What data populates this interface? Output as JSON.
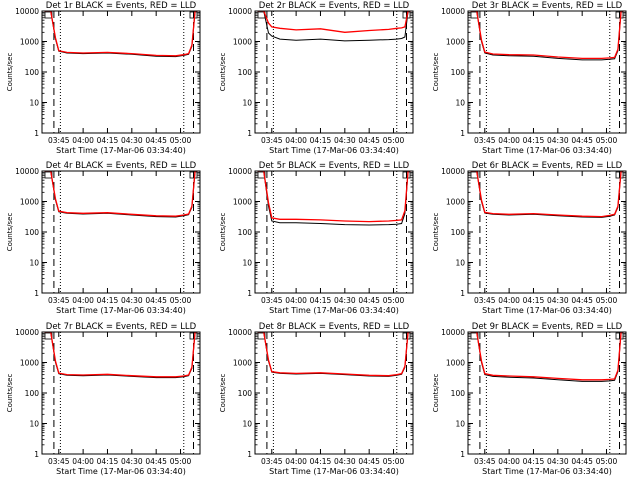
{
  "figure": {
    "colors": {
      "events": "#000000",
      "lld": "#ff0000",
      "background": "#ffffff"
    }
  },
  "chart_data": [
    {
      "type": "line",
      "title": "Det 1r BLACK = Events, RED = LLD",
      "xlabel": "Start Time (17-Mar-06 03:34:40)",
      "ylabel": "Counts/sec",
      "scale": "log-y",
      "ylim": [
        1,
        10000
      ],
      "xlim": [
        "03:34:40",
        "05:12:00"
      ],
      "x_ticks": [
        "03:45",
        "04:00",
        "04:15",
        "04:30",
        "04:45",
        "05:00"
      ],
      "y_ticks": [
        1,
        10,
        100,
        1000,
        10000
      ],
      "series": [
        {
          "name": "Events",
          "color": "#000000",
          "x": [
            "03:36:00",
            "03:40:00",
            "03:43:00",
            "03:45:00",
            "03:50:00",
            "04:00:00",
            "04:15:00",
            "04:30:00",
            "04:45:00",
            "04:57:00",
            "05:02:00",
            "05:05:00",
            "05:07:00",
            "05:09:00",
            "05:11:00"
          ],
          "values": [
            10000,
            10000,
            1200,
            480,
            420,
            400,
            420,
            380,
            330,
            320,
            350,
            380,
            700,
            10000,
            10000
          ]
        },
        {
          "name": "LLD",
          "color": "#ff0000",
          "x": [
            "03:36:00",
            "03:40:00",
            "03:43:00",
            "03:45:00",
            "03:50:00",
            "04:00:00",
            "04:15:00",
            "04:30:00",
            "04:45:00",
            "04:57:00",
            "05:02:00",
            "05:05:00",
            "05:07:00",
            "05:09:00",
            "05:11:00"
          ],
          "values": [
            10000,
            10000,
            1300,
            500,
            440,
            420,
            440,
            400,
            350,
            340,
            370,
            400,
            750,
            10000,
            10000
          ]
        }
      ]
    },
    {
      "type": "line",
      "title": "Det 2r BLACK = Events, RED = LLD",
      "xlabel": "Start Time (17-Mar-06 03:34:40)",
      "ylabel": "Counts/sec",
      "scale": "log-y",
      "ylim": [
        1,
        10000
      ],
      "xlim": [
        "03:34:40",
        "05:12:00"
      ],
      "x_ticks": [
        "03:45",
        "04:00",
        "04:15",
        "04:30",
        "04:45",
        "05:00"
      ],
      "y_ticks": [
        1,
        10,
        100,
        1000,
        10000
      ],
      "series": [
        {
          "name": "Events",
          "color": "#000000",
          "x": [
            "03:36:00",
            "03:40:00",
            "03:43:00",
            "03:45:00",
            "03:50:00",
            "04:00:00",
            "04:15:00",
            "04:30:00",
            "04:45:00",
            "04:57:00",
            "05:02:00",
            "05:05:00",
            "05:07:00",
            "05:09:00",
            "05:11:00"
          ],
          "values": [
            10000,
            10000,
            1900,
            1500,
            1200,
            1100,
            1200,
            1050,
            1100,
            1150,
            1200,
            1250,
            1400,
            10000,
            10000
          ]
        },
        {
          "name": "LLD",
          "color": "#ff0000",
          "x": [
            "03:36:00",
            "03:40:00",
            "03:43:00",
            "03:45:00",
            "03:50:00",
            "04:00:00",
            "04:15:00",
            "04:30:00",
            "04:45:00",
            "04:57:00",
            "05:02:00",
            "05:05:00",
            "05:07:00",
            "05:09:00",
            "05:11:00"
          ],
          "values": [
            10000,
            10000,
            4000,
            3000,
            2700,
            2400,
            2600,
            2000,
            2300,
            2500,
            2700,
            2800,
            3000,
            10000,
            10000
          ]
        }
      ]
    },
    {
      "type": "line",
      "title": "Det 3r BLACK = Events, RED = LLD",
      "xlabel": "Start Time (17-Mar-06 03:34:40)",
      "ylabel": "Counts/sec",
      "scale": "log-y",
      "ylim": [
        1,
        10000
      ],
      "xlim": [
        "03:34:40",
        "05:12:00"
      ],
      "x_ticks": [
        "03:45",
        "04:00",
        "04:15",
        "04:30",
        "04:45",
        "05:00"
      ],
      "y_ticks": [
        1,
        10,
        100,
        1000,
        10000
      ],
      "series": [
        {
          "name": "Events",
          "color": "#000000",
          "x": [
            "03:36:00",
            "03:40:00",
            "03:43:00",
            "03:45:00",
            "03:50:00",
            "04:00:00",
            "04:15:00",
            "04:30:00",
            "04:45:00",
            "04:57:00",
            "05:02:00",
            "05:05:00",
            "05:07:00",
            "05:09:00",
            "05:11:00"
          ],
          "values": [
            10000,
            10000,
            1000,
            420,
            360,
            340,
            330,
            280,
            250,
            250,
            260,
            270,
            500,
            10000,
            10000
          ]
        },
        {
          "name": "LLD",
          "color": "#ff0000",
          "x": [
            "03:36:00",
            "03:40:00",
            "03:43:00",
            "03:45:00",
            "03:50:00",
            "04:00:00",
            "04:15:00",
            "04:30:00",
            "04:45:00",
            "04:57:00",
            "05:02:00",
            "05:05:00",
            "05:07:00",
            "05:09:00",
            "05:11:00"
          ],
          "values": [
            10000,
            10000,
            1100,
            450,
            390,
            370,
            360,
            310,
            280,
            280,
            290,
            300,
            550,
            10000,
            10000
          ]
        }
      ]
    },
    {
      "type": "line",
      "title": "Det 4r BLACK = Events, RED = LLD",
      "xlabel": "Start Time (17-Mar-06 03:34:40)",
      "ylabel": "Counts/sec",
      "scale": "log-y",
      "ylim": [
        1,
        10000
      ],
      "xlim": [
        "03:34:40",
        "05:12:00"
      ],
      "x_ticks": [
        "03:45",
        "04:00",
        "04:15",
        "04:30",
        "04:45",
        "05:00"
      ],
      "y_ticks": [
        1,
        10,
        100,
        1000,
        10000
      ],
      "series": [
        {
          "name": "Events",
          "color": "#000000",
          "x": [
            "03:36:00",
            "03:40:00",
            "03:43:00",
            "03:45:00",
            "03:50:00",
            "04:00:00",
            "04:15:00",
            "04:30:00",
            "04:45:00",
            "04:57:00",
            "05:02:00",
            "05:05:00",
            "05:07:00",
            "05:09:00",
            "05:11:00"
          ],
          "values": [
            10000,
            10000,
            1100,
            460,
            410,
            390,
            410,
            360,
            320,
            310,
            340,
            370,
            650,
            10000,
            10000
          ]
        },
        {
          "name": "LLD",
          "color": "#ff0000",
          "x": [
            "03:36:00",
            "03:40:00",
            "03:43:00",
            "03:45:00",
            "03:50:00",
            "04:00:00",
            "04:15:00",
            "04:30:00",
            "04:45:00",
            "04:57:00",
            "05:02:00",
            "05:05:00",
            "05:07:00",
            "05:09:00",
            "05:11:00"
          ],
          "values": [
            10000,
            10000,
            1200,
            480,
            430,
            410,
            430,
            380,
            340,
            330,
            360,
            390,
            700,
            10000,
            10000
          ]
        }
      ]
    },
    {
      "type": "line",
      "title": "Det 5r BLACK = Events, RED = LLD",
      "xlabel": "Start Time (17-Mar-06 03:34:40)",
      "ylabel": "Counts/sec",
      "scale": "log-y",
      "ylim": [
        1,
        10000
      ],
      "xlim": [
        "03:34:40",
        "05:12:00"
      ],
      "x_ticks": [
        "03:45",
        "04:00",
        "04:15",
        "04:30",
        "04:45",
        "05:00"
      ],
      "y_ticks": [
        1,
        10,
        100,
        1000,
        10000
      ],
      "series": [
        {
          "name": "Events",
          "color": "#000000",
          "x": [
            "03:36:00",
            "03:40:00",
            "03:43:00",
            "03:45:00",
            "03:50:00",
            "04:00:00",
            "04:15:00",
            "04:30:00",
            "04:45:00",
            "04:57:00",
            "05:02:00",
            "05:05:00",
            "05:07:00",
            "05:09:00",
            "05:11:00"
          ],
          "values": [
            10000,
            10000,
            700,
            230,
            200,
            200,
            190,
            175,
            170,
            175,
            180,
            190,
            400,
            10000,
            10000
          ]
        },
        {
          "name": "LLD",
          "color": "#ff0000",
          "x": [
            "03:36:00",
            "03:40:00",
            "03:43:00",
            "03:45:00",
            "03:50:00",
            "04:00:00",
            "04:15:00",
            "04:30:00",
            "04:45:00",
            "04:57:00",
            "05:02:00",
            "05:05:00",
            "05:07:00",
            "05:09:00",
            "05:11:00"
          ],
          "values": [
            10000,
            10000,
            900,
            290,
            260,
            260,
            250,
            230,
            220,
            230,
            240,
            250,
            500,
            10000,
            10000
          ]
        }
      ]
    },
    {
      "type": "line",
      "title": "Det 6r BLACK = Events, RED = LLD",
      "xlabel": "Start Time (17-Mar-06 03:34:40)",
      "ylabel": "Counts/sec",
      "scale": "log-y",
      "ylim": [
        1,
        10000
      ],
      "xlim": [
        "03:34:40",
        "05:12:00"
      ],
      "x_ticks": [
        "03:45",
        "04:00",
        "04:15",
        "04:30",
        "04:45",
        "05:00"
      ],
      "y_ticks": [
        1,
        10,
        100,
        1000,
        10000
      ],
      "series": [
        {
          "name": "Events",
          "color": "#000000",
          "x": [
            "03:36:00",
            "03:40:00",
            "03:43:00",
            "03:45:00",
            "03:50:00",
            "04:00:00",
            "04:15:00",
            "04:30:00",
            "04:45:00",
            "04:57:00",
            "05:02:00",
            "05:05:00",
            "05:07:00",
            "05:09:00",
            "05:11:00"
          ],
          "values": [
            10000,
            10000,
            1000,
            420,
            380,
            360,
            380,
            340,
            310,
            300,
            330,
            360,
            650,
            10000,
            10000
          ]
        },
        {
          "name": "LLD",
          "color": "#ff0000",
          "x": [
            "03:36:00",
            "03:40:00",
            "03:43:00",
            "03:45:00",
            "03:50:00",
            "04:00:00",
            "04:15:00",
            "04:30:00",
            "04:45:00",
            "04:57:00",
            "05:02:00",
            "05:05:00",
            "05:07:00",
            "05:09:00",
            "05:11:00"
          ],
          "values": [
            10000,
            10000,
            1100,
            440,
            400,
            380,
            400,
            360,
            330,
            320,
            350,
            380,
            700,
            10000,
            10000
          ]
        }
      ]
    },
    {
      "type": "line",
      "title": "Det 7r BLACK = Events, RED = LLD",
      "xlabel": "Start Time (17-Mar-06 03:34:40)",
      "ylabel": "Counts/sec",
      "scale": "log-y",
      "ylim": [
        1,
        10000
      ],
      "xlim": [
        "03:34:40",
        "05:12:00"
      ],
      "x_ticks": [
        "03:45",
        "04:00",
        "04:15",
        "04:30",
        "04:45",
        "05:00"
      ],
      "y_ticks": [
        1,
        10,
        100,
        1000,
        10000
      ],
      "series": [
        {
          "name": "Events",
          "color": "#000000",
          "x": [
            "03:36:00",
            "03:40:00",
            "03:43:00",
            "03:45:00",
            "03:50:00",
            "04:00:00",
            "04:15:00",
            "04:30:00",
            "04:45:00",
            "04:57:00",
            "05:02:00",
            "05:05:00",
            "05:07:00",
            "05:09:00",
            "05:11:00"
          ],
          "values": [
            10000,
            10000,
            1000,
            430,
            380,
            370,
            390,
            350,
            320,
            320,
            340,
            370,
            650,
            10000,
            10000
          ]
        },
        {
          "name": "LLD",
          "color": "#ff0000",
          "x": [
            "03:36:00",
            "03:40:00",
            "03:43:00",
            "03:45:00",
            "03:50:00",
            "04:00:00",
            "04:15:00",
            "04:30:00",
            "04:45:00",
            "04:57:00",
            "05:02:00",
            "05:05:00",
            "05:07:00",
            "05:09:00",
            "05:11:00"
          ],
          "values": [
            10000,
            10000,
            1100,
            450,
            400,
            390,
            410,
            370,
            340,
            340,
            360,
            390,
            700,
            10000,
            10000
          ]
        }
      ]
    },
    {
      "type": "line",
      "title": "Det 8r BLACK = Events, RED = LLD",
      "xlabel": "Start Time (17-Mar-06 03:34:40)",
      "ylabel": "Counts/sec",
      "scale": "log-y",
      "ylim": [
        1,
        10000
      ],
      "xlim": [
        "03:34:40",
        "05:12:00"
      ],
      "x_ticks": [
        "03:45",
        "04:00",
        "04:15",
        "04:30",
        "04:45",
        "05:00"
      ],
      "y_ticks": [
        1,
        10,
        100,
        1000,
        10000
      ],
      "series": [
        {
          "name": "Events",
          "color": "#000000",
          "x": [
            "03:36:00",
            "03:40:00",
            "03:43:00",
            "03:45:00",
            "03:50:00",
            "04:00:00",
            "04:15:00",
            "04:30:00",
            "04:45:00",
            "04:57:00",
            "05:02:00",
            "05:05:00",
            "05:07:00",
            "05:09:00",
            "05:11:00"
          ],
          "values": [
            10000,
            10000,
            1100,
            480,
            440,
            420,
            440,
            400,
            360,
            350,
            380,
            410,
            700,
            10000,
            10000
          ]
        },
        {
          "name": "LLD",
          "color": "#ff0000",
          "x": [
            "03:36:00",
            "03:40:00",
            "03:43:00",
            "03:45:00",
            "03:50:00",
            "04:00:00",
            "04:15:00",
            "04:30:00",
            "04:45:00",
            "04:57:00",
            "05:02:00",
            "05:05:00",
            "05:07:00",
            "05:09:00",
            "05:11:00"
          ],
          "values": [
            10000,
            10000,
            1200,
            500,
            460,
            440,
            460,
            420,
            380,
            370,
            400,
            430,
            750,
            10000,
            10000
          ]
        }
      ]
    },
    {
      "type": "line",
      "title": "Det 9r BLACK = Events, RED = LLD",
      "xlabel": "Start Time (17-Mar-06 03:34:40)",
      "ylabel": "Counts/sec",
      "scale": "log-y",
      "ylim": [
        1,
        10000
      ],
      "xlim": [
        "03:34:40",
        "05:12:00"
      ],
      "x_ticks": [
        "03:45",
        "04:00",
        "04:15",
        "04:30",
        "04:45",
        "05:00"
      ],
      "y_ticks": [
        1,
        10,
        100,
        1000,
        10000
      ],
      "series": [
        {
          "name": "Events",
          "color": "#000000",
          "x": [
            "03:36:00",
            "03:40:00",
            "03:43:00",
            "03:45:00",
            "03:50:00",
            "04:00:00",
            "04:15:00",
            "04:30:00",
            "04:45:00",
            "04:57:00",
            "05:02:00",
            "05:05:00",
            "05:07:00",
            "05:09:00",
            "05:11:00"
          ],
          "values": [
            10000,
            10000,
            1000,
            400,
            350,
            330,
            310,
            270,
            240,
            240,
            250,
            260,
            500,
            10000,
            10000
          ]
        },
        {
          "name": "LLD",
          "color": "#ff0000",
          "x": [
            "03:36:00",
            "03:40:00",
            "03:43:00",
            "03:45:00",
            "03:50:00",
            "04:00:00",
            "04:15:00",
            "04:30:00",
            "04:45:00",
            "04:57:00",
            "05:02:00",
            "05:05:00",
            "05:07:00",
            "05:09:00",
            "05:11:00"
          ],
          "values": [
            10000,
            10000,
            1100,
            430,
            380,
            360,
            340,
            300,
            270,
            270,
            280,
            290,
            550,
            10000,
            10000
          ]
        }
      ]
    }
  ]
}
